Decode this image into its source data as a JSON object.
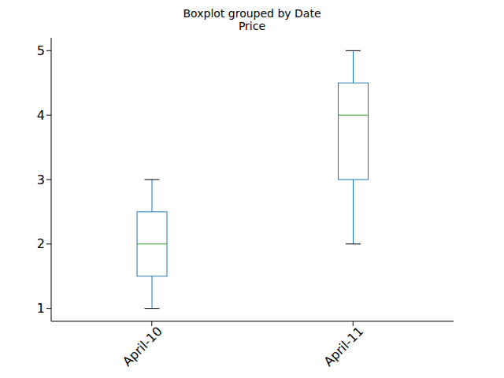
{
  "chart_data": {
    "type": "box",
    "title": "Boxplot grouped by Date",
    "subtitle": "Price",
    "categories": [
      "April-10",
      "April-11"
    ],
    "whisker_low": [
      1,
      2
    ],
    "q1": [
      1.5,
      3
    ],
    "median": [
      2,
      4
    ],
    "q3": [
      2.5,
      4.5
    ],
    "whisker_high": [
      3,
      5
    ],
    "color": "#1f77b4",
    "ylim": [
      0.8,
      5.2
    ],
    "yticks": [
      1,
      2,
      3,
      4,
      5
    ],
    "grid": false
  }
}
